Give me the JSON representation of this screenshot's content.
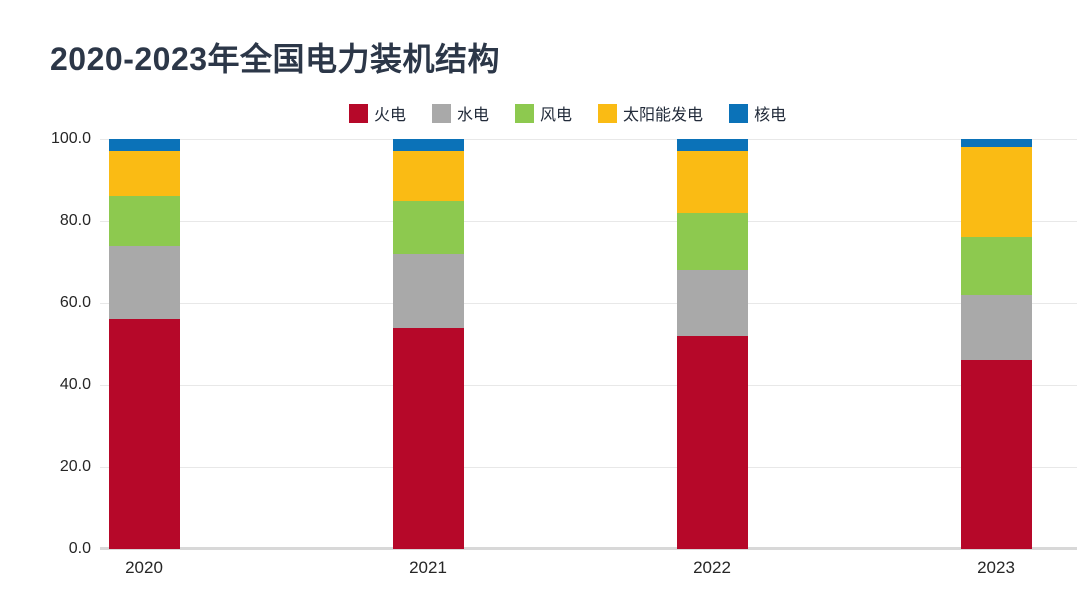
{
  "page": {
    "background": "#ffffff"
  },
  "header": {
    "title": "2020-2023年全国电力装机结构",
    "title_color": "#2C3748"
  },
  "colors": {
    "thermal_red": "#B60829",
    "hydro_gray": "#A9A9A9",
    "wind_green": "#8DC94F",
    "solar_yellow": "#FABB14",
    "nuclear_blue": "#0B72B8",
    "gridline": "#E8E8E8",
    "axis_line": "#D8D8D8",
    "tick_text": "#262626"
  },
  "chart_data": {
    "type": "bar",
    "stacked": true,
    "stack_unit": "percent",
    "title": "2020-2023年全国电力装机结构",
    "xlabel": "",
    "ylabel": "",
    "categories": [
      "2020",
      "2021",
      "2022",
      "2023"
    ],
    "series": [
      {
        "name": "火电",
        "color": "#B60829",
        "values": [
          56,
          54,
          52,
          46
        ]
      },
      {
        "name": "水电",
        "color": "#A9A9A9",
        "values": [
          18,
          18,
          16,
          16
        ]
      },
      {
        "name": "风电",
        "color": "#8DC94F",
        "values": [
          12,
          13,
          14,
          14
        ]
      },
      {
        "name": "太阳能发电",
        "color": "#FABB14",
        "values": [
          11,
          12,
          15,
          22
        ]
      },
      {
        "name": "核电",
        "color": "#0B72B8",
        "values": [
          3,
          3,
          3,
          2
        ]
      }
    ],
    "ylim": [
      0,
      100
    ],
    "yticks": [
      {
        "label": "100.0",
        "value": 100
      },
      {
        "label": "80.0",
        "value": 80
      },
      {
        "label": "60.0",
        "value": 60
      },
      {
        "label": "40.0",
        "value": 40
      },
      {
        "label": "20.0",
        "value": 20
      },
      {
        "label": "0.0",
        "value": 0
      }
    ],
    "grid": true,
    "legend_position": "top-center"
  }
}
